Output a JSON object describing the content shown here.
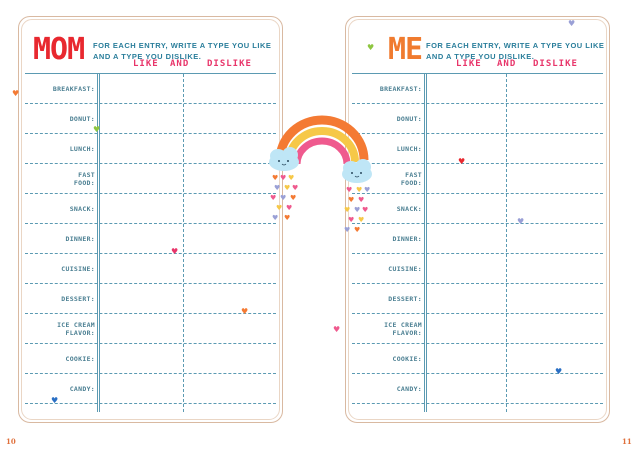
{
  "left_page": {
    "title": "MOM",
    "title_color": "#e8282f",
    "instruction_line1": "For each entry, write a type you like",
    "instruction_line2": "and a type you dislike.",
    "col_like": "LIKE",
    "col_and": "AND",
    "col_dislike": "DISLIKE",
    "page_number": "10"
  },
  "right_page": {
    "title": "ME",
    "title_color": "#f07b2f",
    "instruction_line1": "For each entry, write a type you like",
    "instruction_line2": "and a type you dislike.",
    "col_like": "LIKE",
    "col_and": "AND",
    "col_dislike": "DISLIKE",
    "page_number": "11"
  },
  "rows": [
    {
      "label": "BREAKFAST:"
    },
    {
      "label": "DONUT:"
    },
    {
      "label": "LUNCH:"
    },
    {
      "label": "FAST\nFOOD:"
    },
    {
      "label": "SNACK:"
    },
    {
      "label": "DINNER:"
    },
    {
      "label": "CUISINE:"
    },
    {
      "label": "DESSERT:"
    },
    {
      "label": "ICE CREAM\nFLAVOR:"
    },
    {
      "label": "COOKIE:"
    },
    {
      "label": "CANDY:"
    }
  ],
  "colors": {
    "accent_teal": "#2a7e9b",
    "header_pink": "#e8356a",
    "page_border": "#d9b9a1"
  },
  "icons": [
    "heart-icon",
    "rainbow-icon",
    "cloud-icon"
  ]
}
